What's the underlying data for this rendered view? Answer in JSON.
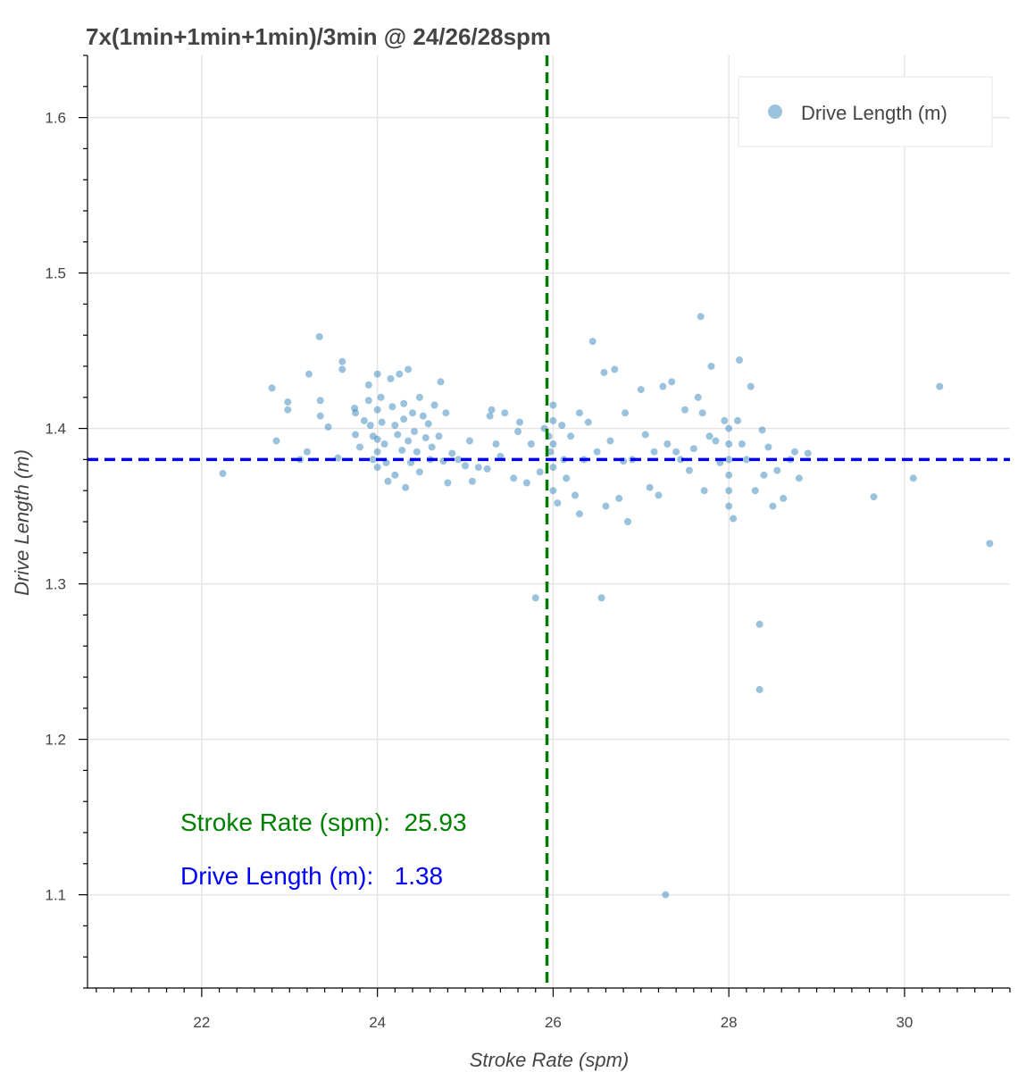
{
  "chart_data": {
    "type": "scatter",
    "title": "7x(1min+1min+1min)/3min @ 24/26/28spm",
    "xlabel": "Stroke Rate (spm)",
    "ylabel": "Drive Length (m)",
    "xlim": [
      20.7,
      31.2
    ],
    "ylim": [
      1.04,
      1.64
    ],
    "x_ticks": [
      22,
      24,
      26,
      28,
      30
    ],
    "y_ticks": [
      1.1,
      1.2,
      1.3,
      1.4,
      1.5,
      1.6
    ],
    "x_tick_labels": [
      "22",
      "24",
      "26",
      "28",
      "30"
    ],
    "y_tick_labels": [
      "1.1",
      "1.2",
      "1.3",
      "1.4",
      "1.5",
      "1.6"
    ],
    "grid": true,
    "legend_position": "top-right",
    "series": [
      {
        "name": "Drive Length (m)",
        "color": "#1f77b4",
        "points": [
          [
            22.24,
            1.371
          ],
          [
            22.8,
            1.426
          ],
          [
            22.85,
            1.392
          ],
          [
            22.98,
            1.417
          ],
          [
            22.98,
            1.412
          ],
          [
            23.12,
            1.38
          ],
          [
            23.2,
            1.385
          ],
          [
            23.22,
            1.435
          ],
          [
            23.34,
            1.459
          ],
          [
            23.35,
            1.418
          ],
          [
            23.35,
            1.408
          ],
          [
            23.44,
            1.401
          ],
          [
            23.55,
            1.381
          ],
          [
            23.6,
            1.443
          ],
          [
            23.6,
            1.438
          ],
          [
            23.74,
            1.413
          ],
          [
            23.75,
            1.41
          ],
          [
            23.75,
            1.396
          ],
          [
            23.8,
            1.388
          ],
          [
            23.85,
            1.405
          ],
          [
            23.9,
            1.428
          ],
          [
            23.9,
            1.418
          ],
          [
            23.92,
            1.402
          ],
          [
            23.95,
            1.395
          ],
          [
            23.95,
            1.38
          ],
          [
            24.0,
            1.435
          ],
          [
            24.0,
            1.412
          ],
          [
            24.0,
            1.393
          ],
          [
            24.0,
            1.385
          ],
          [
            24.0,
            1.375
          ],
          [
            24.04,
            1.42
          ],
          [
            24.05,
            1.404
          ],
          [
            24.08,
            1.39
          ],
          [
            24.1,
            1.378
          ],
          [
            24.12,
            1.366
          ],
          [
            24.15,
            1.432
          ],
          [
            24.17,
            1.414
          ],
          [
            24.2,
            1.402
          ],
          [
            24.2,
            1.37
          ],
          [
            24.23,
            1.396
          ],
          [
            24.25,
            1.435
          ],
          [
            24.28,
            1.386
          ],
          [
            24.3,
            1.416
          ],
          [
            24.3,
            1.406
          ],
          [
            24.32,
            1.362
          ],
          [
            24.35,
            1.438
          ],
          [
            24.35,
            1.392
          ],
          [
            24.38,
            1.378
          ],
          [
            24.4,
            1.41
          ],
          [
            24.42,
            1.398
          ],
          [
            24.45,
            1.385
          ],
          [
            24.48,
            1.42
          ],
          [
            24.48,
            1.372
          ],
          [
            24.52,
            1.408
          ],
          [
            24.55,
            1.394
          ],
          [
            24.58,
            1.403
          ],
          [
            24.6,
            1.38
          ],
          [
            24.62,
            1.388
          ],
          [
            24.65,
            1.415
          ],
          [
            24.7,
            1.395
          ],
          [
            24.72,
            1.43
          ],
          [
            24.75,
            1.379
          ],
          [
            24.78,
            1.41
          ],
          [
            24.8,
            1.365
          ],
          [
            24.85,
            1.384
          ],
          [
            24.92,
            1.38
          ],
          [
            25.0,
            1.376
          ],
          [
            25.05,
            1.392
          ],
          [
            25.08,
            1.366
          ],
          [
            25.15,
            1.375
          ],
          [
            25.25,
            1.374
          ],
          [
            25.28,
            1.408
          ],
          [
            25.3,
            1.412
          ],
          [
            25.35,
            1.39
          ],
          [
            25.4,
            1.382
          ],
          [
            25.45,
            1.41
          ],
          [
            25.55,
            1.368
          ],
          [
            25.6,
            1.398
          ],
          [
            25.62,
            1.404
          ],
          [
            25.7,
            1.365
          ],
          [
            25.75,
            1.39
          ],
          [
            25.8,
            1.291
          ],
          [
            25.85,
            1.372
          ],
          [
            25.9,
            1.4
          ],
          [
            25.95,
            1.395
          ],
          [
            25.97,
            1.385
          ],
          [
            26.0,
            1.415
          ],
          [
            26.0,
            1.405
          ],
          [
            26.0,
            1.39
          ],
          [
            26.0,
            1.375
          ],
          [
            26.0,
            1.36
          ],
          [
            26.05,
            1.352
          ],
          [
            26.1,
            1.402
          ],
          [
            26.12,
            1.38
          ],
          [
            26.15,
            1.368
          ],
          [
            26.2,
            1.395
          ],
          [
            26.25,
            1.357
          ],
          [
            26.3,
            1.41
          ],
          [
            26.3,
            1.345
          ],
          [
            26.35,
            1.38
          ],
          [
            26.4,
            1.404
          ],
          [
            26.45,
            1.456
          ],
          [
            26.5,
            1.385
          ],
          [
            26.55,
            1.291
          ],
          [
            26.58,
            1.436
          ],
          [
            26.6,
            1.35
          ],
          [
            26.65,
            1.392
          ],
          [
            26.7,
            1.438
          ],
          [
            26.75,
            1.355
          ],
          [
            26.8,
            1.379
          ],
          [
            26.82,
            1.41
          ],
          [
            26.85,
            1.34
          ],
          [
            26.9,
            1.38
          ],
          [
            27.0,
            1.425
          ],
          [
            27.05,
            1.396
          ],
          [
            27.1,
            1.362
          ],
          [
            27.15,
            1.385
          ],
          [
            27.2,
            1.357
          ],
          [
            27.25,
            1.427
          ],
          [
            27.28,
            1.1
          ],
          [
            27.3,
            1.39
          ],
          [
            27.35,
            1.43
          ],
          [
            27.4,
            1.385
          ],
          [
            27.45,
            1.38
          ],
          [
            27.5,
            1.412
          ],
          [
            27.55,
            1.373
          ],
          [
            27.6,
            1.387
          ],
          [
            27.65,
            1.42
          ],
          [
            27.68,
            1.472
          ],
          [
            27.7,
            1.41
          ],
          [
            27.72,
            1.36
          ],
          [
            27.78,
            1.395
          ],
          [
            27.8,
            1.44
          ],
          [
            27.85,
            1.392
          ],
          [
            27.9,
            1.378
          ],
          [
            27.95,
            1.405
          ],
          [
            28.0,
            1.4
          ],
          [
            28.0,
            1.39
          ],
          [
            28.0,
            1.38
          ],
          [
            28.0,
            1.37
          ],
          [
            28.0,
            1.36
          ],
          [
            28.0,
            1.35
          ],
          [
            28.05,
            1.342
          ],
          [
            28.1,
            1.405
          ],
          [
            28.12,
            1.444
          ],
          [
            28.15,
            1.39
          ],
          [
            28.2,
            1.38
          ],
          [
            28.25,
            1.427
          ],
          [
            28.3,
            1.36
          ],
          [
            28.35,
            1.274
          ],
          [
            28.35,
            1.232
          ],
          [
            28.38,
            1.399
          ],
          [
            28.4,
            1.37
          ],
          [
            28.45,
            1.388
          ],
          [
            28.5,
            1.35
          ],
          [
            28.55,
            1.373
          ],
          [
            28.62,
            1.355
          ],
          [
            28.7,
            1.38
          ],
          [
            28.75,
            1.385
          ],
          [
            28.8,
            1.368
          ],
          [
            28.9,
            1.384
          ],
          [
            29.65,
            1.356
          ],
          [
            30.1,
            1.368
          ],
          [
            30.4,
            1.427
          ],
          [
            30.97,
            1.326
          ]
        ]
      }
    ],
    "reference_lines": [
      {
        "orientation": "vertical",
        "value": 25.93,
        "color": "#007a00",
        "style": "dashed"
      },
      {
        "orientation": "horizontal",
        "value": 1.38,
        "color": "#0000ee",
        "style": "dashed"
      }
    ],
    "annotations": [
      {
        "text": "Stroke Rate (spm):  25.93",
        "color": "#008000"
      },
      {
        "text": "Drive Length (m):   1.38",
        "color": "#0000ff"
      }
    ]
  }
}
